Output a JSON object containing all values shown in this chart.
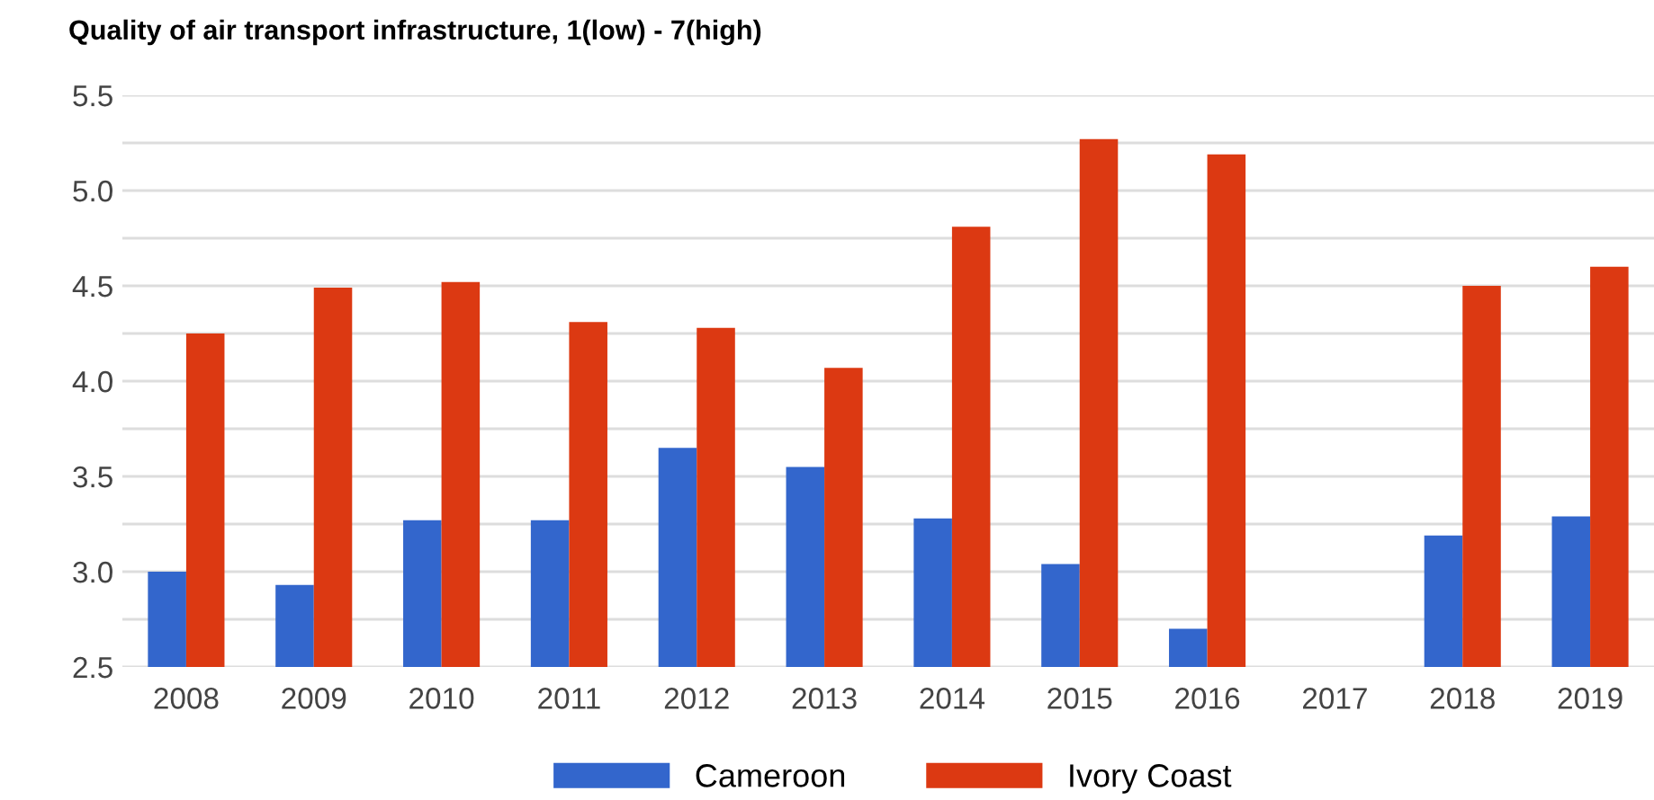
{
  "chart_data": {
    "type": "bar",
    "title": "Quality of air transport infrastructure, 1(low) - 7(high)",
    "categories": [
      "2008",
      "2009",
      "2010",
      "2011",
      "2012",
      "2013",
      "2014",
      "2015",
      "2016",
      "2017",
      "2018",
      "2019"
    ],
    "series": [
      {
        "name": "Cameroon",
        "color": "#3366cc",
        "values": [
          3.0,
          2.93,
          3.27,
          3.27,
          3.65,
          3.55,
          3.28,
          3.04,
          2.7,
          null,
          3.19,
          3.29
        ]
      },
      {
        "name": "Ivory Coast",
        "color": "#dc3912",
        "values": [
          4.25,
          4.49,
          4.52,
          4.31,
          4.28,
          4.07,
          4.81,
          5.27,
          5.19,
          null,
          4.5,
          4.6
        ]
      }
    ],
    "ylim": [
      2.5,
      5.5
    ],
    "yticks": [
      2.5,
      {
        "value": 2.75,
        "label": null
      },
      {
        "value": 3,
        "label": "3.0"
      },
      {
        "value": 3.25,
        "label": null
      },
      3.5,
      {
        "value": 3.75,
        "label": null
      },
      {
        "value": 4,
        "label": "4.0"
      },
      {
        "value": 4.25,
        "label": null
      },
      4.5,
      {
        "value": 4.75,
        "label": null
      },
      {
        "value": 5,
        "label": "5.0"
      },
      {
        "value": 5.25,
        "label": null
      },
      5.5
    ],
    "grid": "y",
    "legend": "bottom"
  }
}
